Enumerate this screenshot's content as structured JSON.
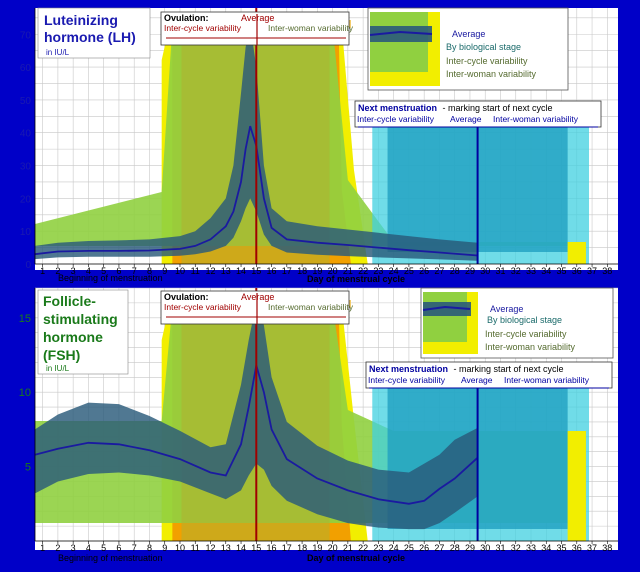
{
  "chart_data": [
    {
      "type": "area",
      "title": "Luteinizing hormone (LH)",
      "unit": "in IU/L",
      "xlabel": "Day of menstrual cycle",
      "x_start_label": "Beginning of menstruation",
      "xlim": [
        0.5,
        38.7
      ],
      "ylim": [
        0,
        78
      ],
      "yticks": [
        0,
        10,
        20,
        30,
        40,
        50,
        60,
        70
      ],
      "x": [
        0.5,
        2,
        4,
        6,
        8,
        10,
        11,
        12,
        13,
        13.5,
        14,
        14.3,
        14.6,
        15,
        15.5,
        16,
        17,
        19,
        21,
        23,
        25,
        27,
        29.5
      ],
      "series": [
        {
          "name": "Average",
          "values": [
            3,
            3.8,
            4,
            4,
            4.1,
            4.6,
            5.5,
            7.5,
            11.5,
            16,
            25,
            35,
            42,
            36,
            20,
            11,
            7.5,
            6.5,
            5.8,
            5,
            4.2,
            3.5,
            2.6
          ]
        },
        {
          "name": "By biological stage",
          "upper": [
            5.5,
            6.5,
            7,
            7.2,
            7.5,
            8.5,
            10,
            14,
            20,
            30,
            52,
            66,
            73,
            60,
            30,
            17,
            13,
            11.5,
            10.5,
            9.5,
            8.5,
            7.5,
            6.5
          ],
          "lower": [
            1.5,
            2,
            2.2,
            2.2,
            2.2,
            2.5,
            3,
            3.8,
            5.5,
            8,
            13,
            17,
            20,
            16,
            9,
            5.5,
            3.5,
            2.8,
            2.4,
            2,
            1.7,
            1.4,
            1
          ]
        }
      ],
      "stage_bands": [
        {
          "name": "Inter-woman variability",
          "color": "#f2ee00",
          "x0": 8.8,
          "x1": 21.4,
          "top": 74
        },
        {
          "name": "Inter-cycle variability",
          "color": "#f2a000",
          "x0": 9.8,
          "x1": 20.4,
          "top": 74
        },
        {
          "name": "Inter-woman variability (green)",
          "color": "#90d040",
          "x0": 8.8,
          "x1": 21.4,
          "top": 74
        },
        {
          "name": "Average ovulation",
          "color": "#b8b840",
          "x0": 10.1,
          "x1": 19.8,
          "top": 74
        }
      ],
      "ovulation_legend": {
        "title": "Ovulation:",
        "average": "Average",
        "inter_cycle": "Inter-cycle variability",
        "inter_woman": "Inter-woman variability"
      },
      "menstruation_legend": {
        "title": "Next menstruation",
        "subtitle": "- marking start of next cycle",
        "inter_cycle": "Inter-cycle variability",
        "average": "Average",
        "inter_woman": "Inter-woman variability"
      },
      "key": {
        "average": "Average",
        "stage": "By biological stage",
        "inter_cycle": "Inter-cycle variability",
        "inter_woman": "Inter-woman variability"
      }
    },
    {
      "type": "area",
      "title": "Follicle-stimulating hormone (FSH)",
      "unit": "in IU/L",
      "xlabel": "Day of menstrual cycle",
      "x_start_label": "Beginning of menstruation",
      "xlim": [
        0.5,
        38.7
      ],
      "ylim": [
        0,
        17
      ],
      "yticks": [
        5,
        10,
        15
      ],
      "x": [
        0.5,
        2,
        4,
        6,
        8,
        10,
        12,
        13,
        14,
        14.5,
        15,
        15.5,
        16,
        17,
        19,
        21,
        23,
        25,
        26,
        27,
        28,
        29.5
      ],
      "series": [
        {
          "name": "Average",
          "values": [
            5.8,
            6.2,
            6.6,
            6.5,
            6.1,
            5.5,
            4.6,
            4.4,
            6.5,
            9,
            11.8,
            10,
            7.5,
            5.5,
            4.2,
            3.4,
            2.8,
            2.5,
            2.7,
            3.5,
            4.2,
            5.6
          ]
        },
        {
          "name": "By biological stage",
          "upper": [
            7.5,
            8.5,
            9.3,
            9.2,
            8.4,
            7.4,
            6.3,
            6.5,
            10.5,
            13.5,
            16,
            14.5,
            11,
            8,
            6.4,
            5.4,
            4.8,
            4.6,
            5.2,
            5.8,
            6.8,
            7.6
          ],
          "lower": [
            3.2,
            4,
            4.5,
            4.6,
            4.4,
            4,
            3.2,
            2.8,
            3.4,
            4.4,
            5.2,
            4.8,
            3.7,
            2.7,
            1.8,
            1.2,
            0.9,
            0.8,
            0.8,
            1.2,
            1.9,
            3
          ]
        }
      ],
      "ovulation_legend": {
        "title": "Ovulation:",
        "average": "Average",
        "inter_cycle": "Inter-cycle variability",
        "inter_woman": "Inter-woman variability"
      },
      "menstruation_legend": {
        "title": "Next menstruation",
        "subtitle": "- marking start of next cycle",
        "inter_cycle": "Inter-cycle variability",
        "average": "Average",
        "inter_woman": "Inter-woman variability"
      },
      "key": {
        "average": "Average",
        "stage": "By biological stage",
        "inter_cycle": "Inter-cycle variability",
        "inter_woman": "Inter-woman variability"
      }
    }
  ],
  "colors": {
    "background": "#0000c8",
    "yellow": "#f2ee00",
    "orange": "#f2a000",
    "green": "#90d040",
    "olive": "#b0b030",
    "cyan": "#40d0e0",
    "teal": "#20a0c0",
    "stage_band": "#2a5a7a",
    "average_line": "#1a1aa0",
    "ovulation_line": "#a00000",
    "menstruation_line": "#0000a0"
  },
  "x_day_ticks": [
    "1",
    "2",
    "3",
    "4",
    "5",
    "6",
    "7",
    "8",
    "9",
    "10",
    "11",
    "12",
    "13",
    "14",
    "15",
    "16",
    "17",
    "18",
    "19",
    "20",
    "21",
    "22",
    "23",
    "24",
    "25",
    "26",
    "27",
    "28",
    "29",
    "30",
    "31",
    "32",
    "33",
    "34",
    "35",
    "36",
    "37",
    "38"
  ]
}
